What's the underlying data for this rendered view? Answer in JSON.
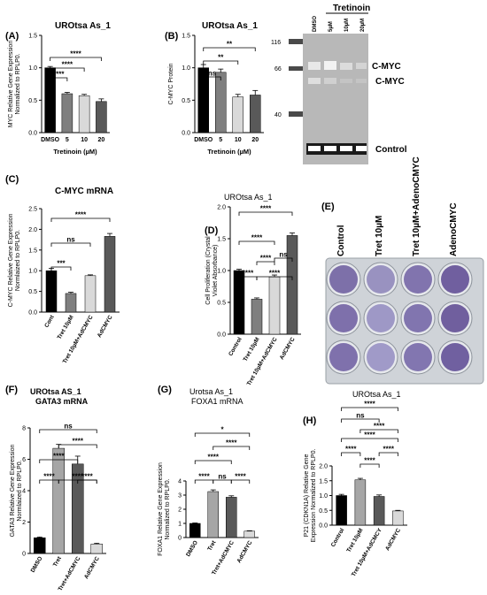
{
  "figure": {
    "panels": [
      {
        "label": "(A)",
        "title": "UROtsa As_1"
      },
      {
        "label": "(B)",
        "title": "UROtsa As_1"
      },
      {
        "label": "(C)",
        "title": "C-MYC mRNA"
      },
      {
        "label": "(D)",
        "title": "UROtsa As_1"
      },
      {
        "label": "(E)"
      },
      {
        "label": "(F)",
        "title": "UROtsa AS_1",
        "subtitle": "GATA3 mRNA"
      },
      {
        "label": "(G)",
        "title": "Urotsa As_1",
        "subtitle": "FOXA1 mRNA"
      },
      {
        "label": "(H)",
        "title": "UROtsa As_1"
      }
    ]
  },
  "blot": {
    "header": "Tretinoin",
    "lanes": [
      "DMSO",
      "5µM",
      "10µM",
      "20µM"
    ],
    "markers": [
      "116",
      "66",
      "40"
    ],
    "band_labels": [
      "C-MYC",
      "C-MYC",
      "Control"
    ]
  },
  "plate": {
    "columns": [
      "Control",
      "Tret 10µM",
      "Tret 10µM+AdenoCMYC",
      "AdenoCMYC"
    ]
  },
  "chart_data": [
    {
      "type": "bar",
      "panel": "A",
      "title": "UROtsa As_1",
      "categories": [
        "DMSO",
        "5",
        "10",
        "20"
      ],
      "values": [
        1.0,
        0.6,
        0.57,
        0.48
      ],
      "errors": [
        0.02,
        0.02,
        0.02,
        0.04
      ],
      "colors": [
        "#000000",
        "#7f7f7f",
        "#d9d9d9",
        "#595959"
      ],
      "xlabel": "Tretinoin (µM)",
      "ylabel": "MYC Relative Gene Expression Normalized to RPLP0.",
      "ylim": [
        0,
        1.5
      ],
      "yticks": [
        "0.0",
        "0.5",
        "1.0",
        "1.5"
      ],
      "significance": [
        "****",
        "****",
        "****"
      ]
    },
    {
      "type": "bar",
      "panel": "B",
      "title": "UROtsa As_1",
      "categories": [
        "DMSO",
        "5",
        "10",
        "20"
      ],
      "values": [
        1.0,
        0.93,
        0.55,
        0.58
      ],
      "errors": [
        0.05,
        0.05,
        0.04,
        0.07
      ],
      "colors": [
        "#000000",
        "#7f7f7f",
        "#d9d9d9",
        "#595959"
      ],
      "xlabel": "Tretinoin (µM)",
      "ylabel": "C-MYC Protein",
      "ylim": [
        0,
        1.5
      ],
      "yticks": [
        "0.0",
        "0.5",
        "1.0",
        "1.5"
      ],
      "significance": [
        "ns",
        "**",
        "**"
      ]
    },
    {
      "type": "bar",
      "panel": "C",
      "title": "C-MYC mRNA",
      "categories": [
        "Cont",
        "Tret 10µM",
        "Tret 10µM+AdCMYC",
        "AdCMYC"
      ],
      "values": [
        1.0,
        0.45,
        0.88,
        1.83
      ],
      "errors": [
        0.06,
        0.03,
        0.02,
        0.07
      ],
      "colors": [
        "#000000",
        "#7f7f7f",
        "#d9d9d9",
        "#595959"
      ],
      "ylabel": "C-MYC Relative Gene Expression Normlaized to RPLP0.",
      "ylim": [
        0,
        2.5
      ],
      "yticks": [
        "0.0",
        "0.5",
        "1.0",
        "1.5",
        "2.0",
        "2.5"
      ],
      "significance": [
        "***",
        "ns",
        "****"
      ]
    },
    {
      "type": "bar",
      "panel": "D",
      "title": "UROtsa As_1",
      "categories": [
        "Control",
        "Tret 10µM",
        "Tret 10µM+AdCMYC",
        "AdCMYC"
      ],
      "values": [
        1.0,
        0.55,
        0.9,
        1.55
      ],
      "errors": [
        0.02,
        0.02,
        0.03,
        0.04
      ],
      "colors": [
        "#000000",
        "#7f7f7f",
        "#d9d9d9",
        "#595959"
      ],
      "ylabel": "Cell Proliferation (Crystal Violet Absorbance)",
      "ylim": [
        0,
        2.0
      ],
      "yticks": [
        "0.0",
        "0.5",
        "1.0",
        "1.5",
        "2.0"
      ],
      "significance": [
        "****",
        "****",
        "****",
        "ns",
        "****",
        "****"
      ]
    },
    {
      "type": "bar",
      "panel": "F",
      "title": "UROtsa AS_1",
      "subtitle": "GATA3 mRNA",
      "categories": [
        "DMSO",
        "Tret",
        "Tret+AdCMYC",
        "AdCMYC"
      ],
      "values": [
        1.0,
        6.7,
        5.7,
        0.6
      ],
      "errors": [
        0.05,
        0.25,
        0.5,
        0.05
      ],
      "colors": [
        "#000000",
        "#a6a6a6",
        "#595959",
        "#d9d9d9"
      ],
      "ylabel": "GATA3 Relative Gene Expression Normlaized to RPLP0.",
      "ylim": [
        0,
        8
      ],
      "yticks": [
        "0",
        "2",
        "4",
        "6",
        "8"
      ],
      "significance": [
        "****",
        "****",
        "****",
        "****",
        "****",
        "ns"
      ]
    },
    {
      "type": "bar",
      "panel": "G",
      "title": "Urotsa As_1",
      "subtitle": "FOXA1 mRNA",
      "categories": [
        "DMSO",
        "Tret",
        "Tret+AdCMYC",
        "AdCMYC"
      ],
      "values": [
        1.0,
        3.25,
        2.85,
        0.45
      ],
      "errors": [
        0.03,
        0.12,
        0.1,
        0.03
      ],
      "colors": [
        "#000000",
        "#a6a6a6",
        "#595959",
        "#d9d9d9"
      ],
      "ylabel": "FOXA1 Relative Gene Expression Normalized to RPLP0.",
      "ylim": [
        0,
        4
      ],
      "yticks": [
        "0",
        "1",
        "2",
        "3",
        "4"
      ],
      "significance": [
        "****",
        "ns",
        "****",
        "****",
        "****",
        "*"
      ]
    },
    {
      "type": "bar",
      "panel": "H",
      "title": "UROtsa As_1",
      "categories": [
        "Control",
        "Tret 10µM",
        "Tret 10µM+AdCMCY",
        "AdCMYC"
      ],
      "values": [
        1.0,
        1.53,
        0.97,
        0.48
      ],
      "errors": [
        0.04,
        0.05,
        0.05,
        0.02
      ],
      "colors": [
        "#000000",
        "#a6a6a6",
        "#595959",
        "#d9d9d9"
      ],
      "ylabel": "P21 (CDKN1A) Relative Gene Expression Normalized to RPLP0.",
      "ylim": [
        0,
        2.0
      ],
      "yticks": [
        "0.0",
        "0.5",
        "1.0",
        "1.5",
        "2.0"
      ],
      "significance": [
        "****",
        "****",
        "****",
        "****",
        "****",
        "ns",
        "****"
      ]
    }
  ]
}
